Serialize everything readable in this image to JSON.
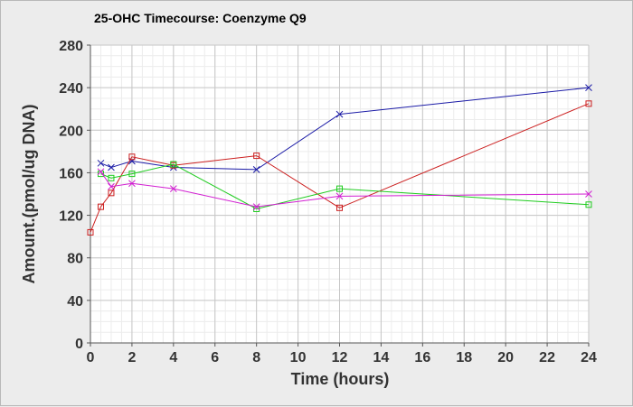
{
  "chart_data": {
    "type": "line",
    "title": "25-OHC Timecourse: Coenzyme Q9",
    "xlabel": "Time (hours)",
    "ylabel": "Amount.(pmol/ug DNA)",
    "xlim": [
      0,
      24
    ],
    "ylim": [
      0,
      280
    ],
    "xticks": [
      0,
      2,
      4,
      6,
      8,
      10,
      12,
      14,
      16,
      18,
      20,
      22,
      24
    ],
    "yticks": [
      0,
      40,
      80,
      120,
      160,
      200,
      240,
      280
    ],
    "grid": true,
    "series": [
      {
        "color": "#1a1aa6",
        "marker": "x",
        "points": [
          [
            0.5,
            169
          ],
          [
            1,
            165
          ],
          [
            2,
            171
          ],
          [
            4,
            165
          ],
          [
            8,
            163
          ],
          [
            12,
            215
          ],
          [
            24,
            240
          ]
        ]
      },
      {
        "color": "#cc1f1f",
        "marker": "square",
        "points": [
          [
            0,
            104
          ],
          [
            0.5,
            128
          ],
          [
            1,
            141
          ],
          [
            2,
            175
          ],
          [
            4,
            167
          ],
          [
            8,
            176
          ],
          [
            12,
            127
          ],
          [
            24,
            225
          ]
        ]
      },
      {
        "color": "#1fcc1f",
        "marker": "square",
        "points": [
          [
            0.5,
            159
          ],
          [
            1,
            155
          ],
          [
            2,
            159
          ],
          [
            4,
            168
          ],
          [
            8,
            126
          ],
          [
            12,
            145
          ],
          [
            24,
            130
          ]
        ]
      },
      {
        "color": "#d21fd2",
        "marker": "x",
        "points": [
          [
            0.5,
            161
          ],
          [
            1,
            147
          ],
          [
            2,
            150
          ],
          [
            4,
            145
          ],
          [
            8,
            128
          ],
          [
            12,
            138
          ],
          [
            24,
            140
          ]
        ]
      }
    ]
  }
}
